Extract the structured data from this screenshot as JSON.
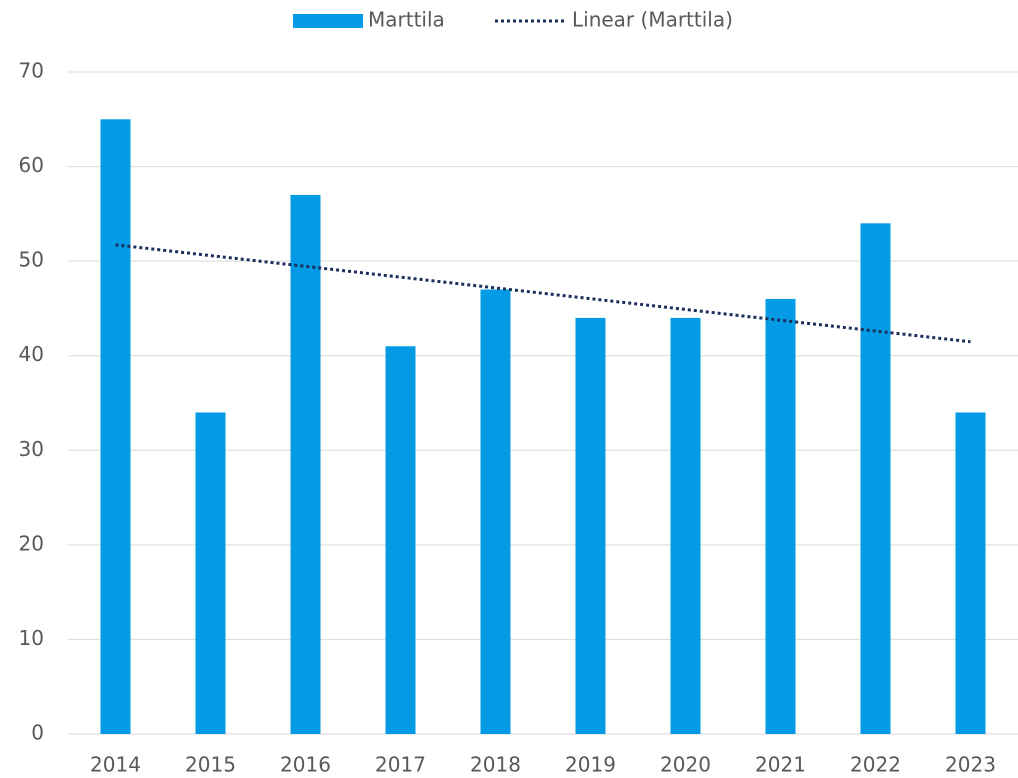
{
  "chart_data": {
    "type": "bar",
    "categories": [
      "2014",
      "2015",
      "2016",
      "2017",
      "2018",
      "2019",
      "2020",
      "2021",
      "2022",
      "2023"
    ],
    "series": [
      {
        "name": "Marttila",
        "color": "#039be5",
        "values": [
          65,
          34,
          57,
          41,
          47,
          44,
          44,
          46,
          54,
          34
        ]
      }
    ],
    "trendline": {
      "name": "Linear (Marttila)",
      "color": "#1b2f5e",
      "kind": "linear",
      "style": "dotted"
    },
    "ylim": [
      0,
      70
    ],
    "yticks": [
      0,
      10,
      20,
      30,
      40,
      50,
      60,
      70
    ],
    "grid": true,
    "legend": "top"
  }
}
